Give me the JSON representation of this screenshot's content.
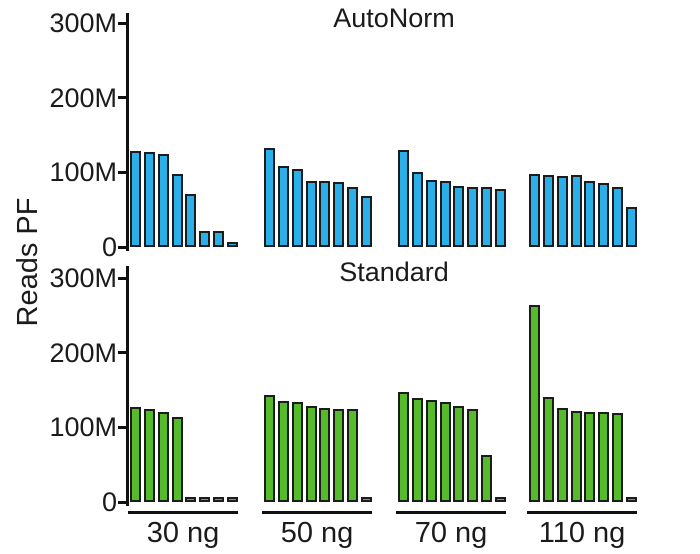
{
  "figure": {
    "ylabel": "Reads PF",
    "x_group_labels": [
      "30 ng",
      "50 ng",
      "70 ng",
      "110 ng"
    ],
    "y_tick_labels": [
      "0",
      "100M",
      "200M",
      "300M"
    ]
  },
  "colors": {
    "autonorm_bar_fill": "#2bafe8",
    "standard_bar_fill": "#55bb2b",
    "bar_stroke": "#1c1c1c",
    "axis": "#111111",
    "text": "#1b1b1b",
    "background": "#ffffff"
  },
  "chart_data": [
    {
      "type": "bar",
      "title": "AutoNorm",
      "ylabel": "Reads PF",
      "unit": "reads passing filter, millions",
      "ylim_millions": [
        0,
        300
      ],
      "y_ticks_millions": [
        0,
        100,
        200,
        300
      ],
      "y_tick_labels": [
        "0",
        "100M",
        "200M",
        "300M"
      ],
      "categories": [
        "30 ng",
        "50 ng",
        "70 ng",
        "110 ng"
      ],
      "grid": false,
      "legend": false,
      "groups": [
        {
          "category": "30 ng",
          "values_millions": [
            129,
            128,
            124,
            98,
            71,
            21,
            22,
            4
          ]
        },
        {
          "category": "50 ng",
          "values_millions": [
            133,
            109,
            104,
            89,
            88,
            87,
            80,
            69
          ]
        },
        {
          "category": "70 ng",
          "values_millions": [
            130,
            101,
            90,
            88,
            82,
            81,
            80,
            78
          ]
        },
        {
          "category": "110 ng",
          "values_millions": [
            98,
            96,
            95,
            96,
            88,
            86,
            81,
            54
          ]
        }
      ]
    },
    {
      "type": "bar",
      "title": "Standard",
      "ylabel": "Reads PF",
      "unit": "reads passing filter, millions",
      "ylim_millions": [
        0,
        300
      ],
      "y_ticks_millions": [
        0,
        100,
        200,
        300
      ],
      "y_tick_labels": [
        "0",
        "100M",
        "200M",
        "300M"
      ],
      "categories": [
        "30 ng",
        "50 ng",
        "70 ng",
        "110 ng"
      ],
      "grid": false,
      "legend": false,
      "groups": [
        {
          "category": "30 ng",
          "values_millions": [
            127,
            125,
            120,
            114,
            3,
            3,
            3,
            3
          ]
        },
        {
          "category": "50 ng",
          "values_millions": [
            143,
            135,
            134,
            129,
            126,
            125,
            124,
            3
          ]
        },
        {
          "category": "70 ng",
          "values_millions": [
            148,
            140,
            137,
            134,
            129,
            124,
            63,
            3
          ]
        },
        {
          "category": "110 ng",
          "values_millions": [
            264,
            141,
            126,
            122,
            121,
            121,
            119,
            5
          ]
        }
      ]
    }
  ]
}
